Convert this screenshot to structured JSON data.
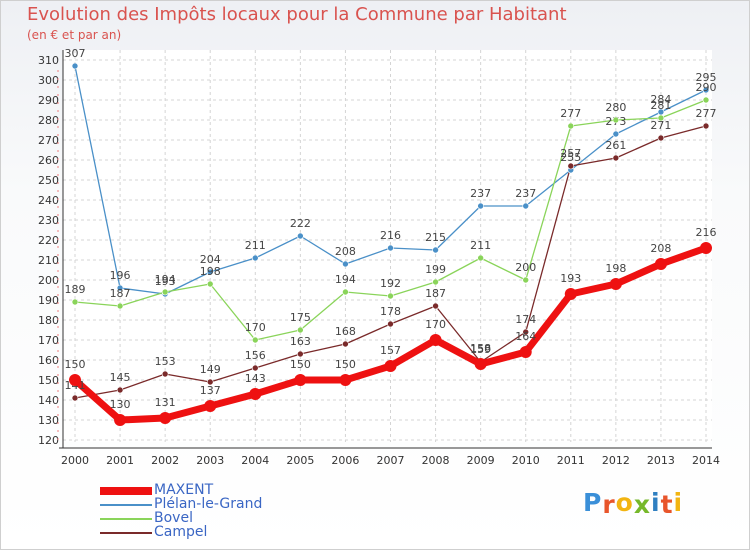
{
  "title": "Evolution des Impôts locaux pour la Commune par Habitant",
  "subtitle": "(en € et par an)",
  "logo": "Proxiti",
  "logo_colors": [
    "#3a8fd8",
    "#e8552b",
    "#f2b411",
    "#76b82a",
    "#2f7fc1",
    "#e8552b",
    "#f2b411"
  ],
  "chart_data": {
    "type": "line",
    "title": "Evolution des Impôts locaux pour la Commune par Habitant",
    "subtitle": "(en € et par an)",
    "xlabel": "",
    "ylabel": "",
    "ylim": [
      120,
      310
    ],
    "ytick_step": 10,
    "grid": true,
    "legend_position": "bottom-left",
    "x": [
      "2000",
      "2001",
      "2002",
      "2003",
      "2004",
      "2005",
      "2006",
      "2007",
      "2008",
      "2009",
      "2010",
      "2011",
      "2012",
      "2013",
      "2014"
    ],
    "series": [
      {
        "name": "Plélan-le-Grand",
        "color": "#4a90c8",
        "values": [
          307,
          196,
          193,
          204,
          211,
          222,
          208,
          216,
          215,
          237,
          237,
          255,
          273,
          284,
          295
        ]
      },
      {
        "name": "Bovel",
        "color": "#8ad45a",
        "values": [
          189,
          187,
          194,
          198,
          170,
          175,
          194,
          192,
          199,
          211,
          200,
          277,
          280,
          281,
          290
        ]
      },
      {
        "name": "Campel",
        "color": "#7a2a2a",
        "values": [
          141,
          145,
          153,
          149,
          156,
          163,
          168,
          178,
          187,
          159,
          174,
          257,
          261,
          271,
          277
        ]
      },
      {
        "name": "MAXENT",
        "color": "#ee1111",
        "values": [
          150,
          130,
          131,
          137,
          143,
          150,
          150,
          157,
          170,
          158,
          164,
          193,
          198,
          208,
          216
        ]
      }
    ],
    "legend": [
      "MAXENT",
      "Plélan-le-Grand",
      "Bovel",
      "Campel"
    ]
  }
}
